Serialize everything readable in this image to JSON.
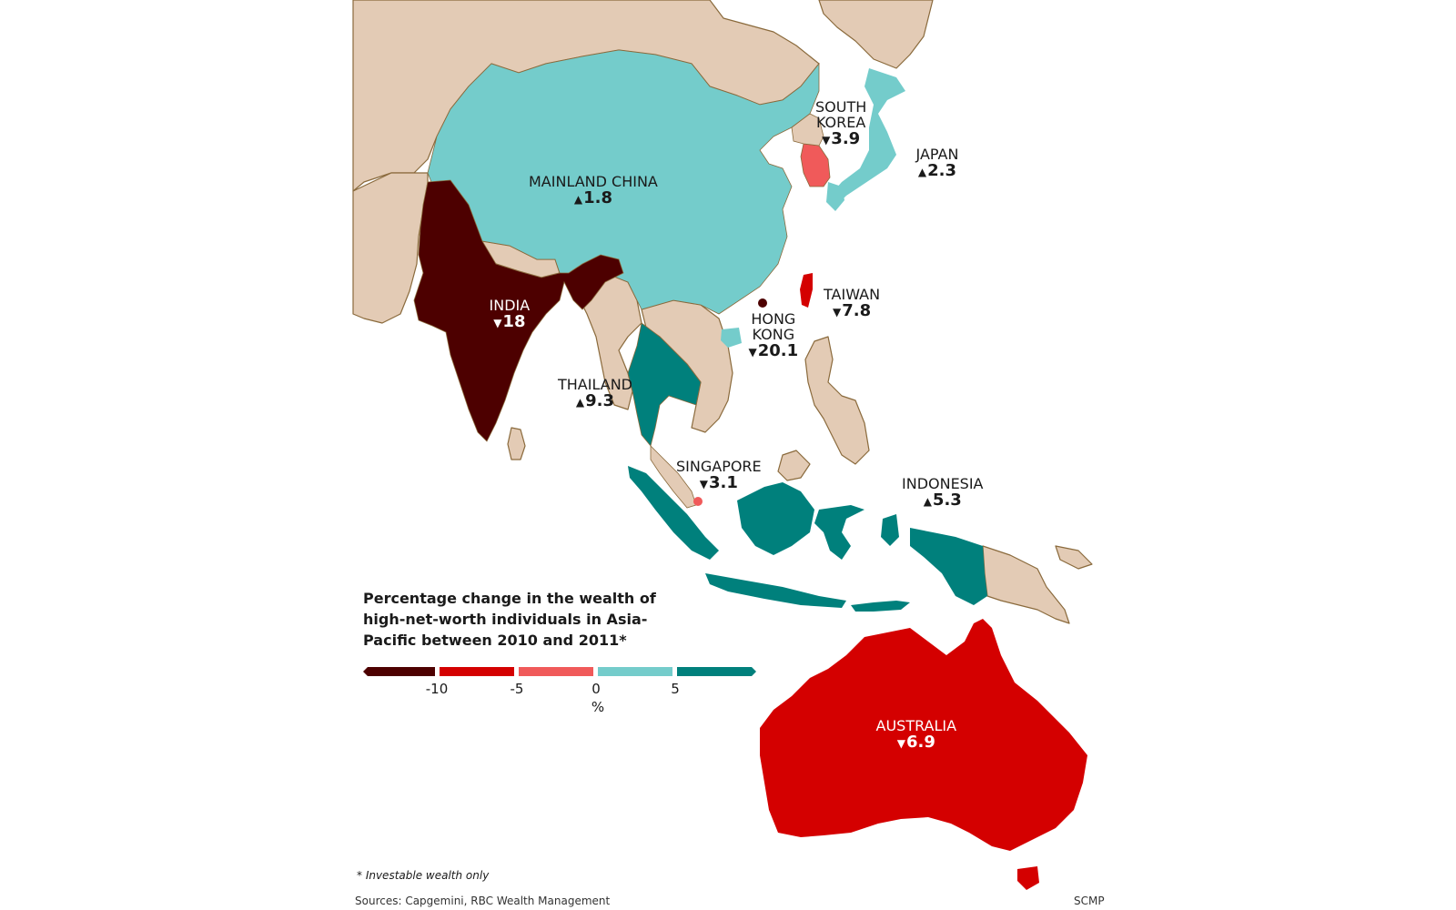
{
  "colors": {
    "land_other": "#e3cbb5",
    "border": "#8a6a3c",
    "bin_lt_neg10": "#4d0000",
    "bin_neg10_neg5": "#d40000",
    "bin_neg5_0": "#f05a5a",
    "bin_0_5": "#74cccb",
    "bin_gt5": "#00807c"
  },
  "regions": [
    {
      "name": "MAINLAND CHINA",
      "change": 1.8,
      "direction": "up",
      "label": "1.8"
    },
    {
      "name": "SOUTH KOREA",
      "change": -3.9,
      "direction": "down",
      "label": "3.9"
    },
    {
      "name": "JAPAN",
      "change": 2.3,
      "direction": "up",
      "label": "2.3"
    },
    {
      "name": "INDIA",
      "change": -18,
      "direction": "down",
      "label": "18"
    },
    {
      "name": "TAIWAN",
      "change": -7.8,
      "direction": "down",
      "label": "7.8"
    },
    {
      "name": "HONG KONG",
      "change": -20.1,
      "direction": "down",
      "label": "20.1"
    },
    {
      "name": "THAILAND",
      "change": 9.3,
      "direction": "up",
      "label": "9.3"
    },
    {
      "name": "SINGAPORE",
      "change": -3.1,
      "direction": "down",
      "label": "3.1"
    },
    {
      "name": "INDONESIA",
      "change": 5.3,
      "direction": "up",
      "label": "5.3"
    },
    {
      "name": "AUSTRALIA",
      "change": -6.9,
      "direction": "down",
      "label": "6.9"
    }
  ],
  "labels": {
    "china_name": "MAINLAND CHINA",
    "china_val": "1.8",
    "korea_name1": "SOUTH",
    "korea_name2": "KOREA",
    "korea_val": "3.9",
    "japan_name": "JAPAN",
    "japan_val": "2.3",
    "india_name": "INDIA",
    "india_val": "18",
    "taiwan_name": "TAIWAN",
    "taiwan_val": "7.8",
    "hk_name1": "HONG",
    "hk_name2": "KONG",
    "hk_val": "20.1",
    "thailand_name": "THAILAND",
    "thailand_val": "9.3",
    "singapore_name": "SINGAPORE",
    "singapore_val": "3.1",
    "indonesia_name": "INDONESIA",
    "indonesia_val": "5.3",
    "australia_name": "AUSTRALIA",
    "australia_val": "6.9"
  },
  "arrows": {
    "up": "▲",
    "down": "▼"
  },
  "legend": {
    "title": "Percentage change in the wealth of high-net-worth individuals in Asia-Pacific between 2010 and 2011*",
    "ticks": [
      "-10",
      "-5",
      "0",
      "5"
    ],
    "unit": "%"
  },
  "footnote": "* Investable wealth only",
  "sources": "Sources: Capgemini, RBC Wealth Management",
  "credit": "SCMP"
}
